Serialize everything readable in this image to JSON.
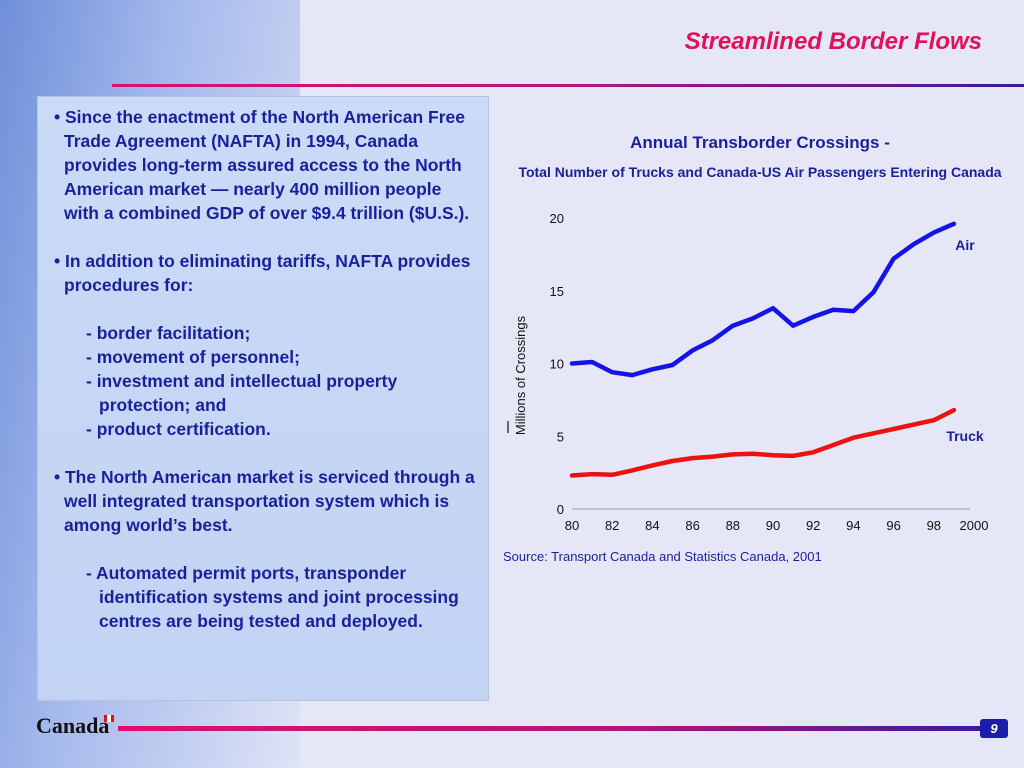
{
  "slide": {
    "title": "Streamlined Border Flows",
    "page_number": "9",
    "brand": "Canada"
  },
  "text_panel": {
    "bullet1": "• Since  the enactment of the North American Free Trade Agreement (NAFTA) in 1994, Canada provides long-term assured access to the North American market — nearly 400 million people with a combined GDP of over $9.4 trillion ($U.S.).",
    "bullet2": "• In addition to eliminating tariffs, NAFTA provides procedures for:",
    "sub_items": [
      "- border facilitation;",
      "- movement of personnel;",
      "- investment and intellectual property protection; and",
      "- product certification."
    ],
    "bullet3": "• The North American market is serviced through a well integrated transportation system which is among world’s best.",
    "sub_item3": "- Automated permit ports, transponder identification systems and joint processing centres are being tested and deployed."
  },
  "source": "Source: Transport Canada and Statistics Canada, 2001",
  "colors": {
    "air": "#1414e6",
    "truck": "#ee1111",
    "text": "#1b1f9c",
    "accent": "#e0105a"
  },
  "chart_data": {
    "type": "line",
    "title": "Annual Transborder Crossings -",
    "subtitle": "Total Number of Trucks and Canada-US Air Passengers Entering Canada",
    "ylabel": "Millions of Crossings",
    "xlabel": "",
    "ylim": [
      0,
      20
    ],
    "yticks": [
      "0",
      "5",
      "10",
      "15",
      "20"
    ],
    "xticks": [
      "80",
      "82",
      "84",
      "86",
      "88",
      "90",
      "92",
      "94",
      "96",
      "98",
      "2000"
    ],
    "xlim": [
      1980,
      2000
    ],
    "grid": false,
    "x": [
      1980,
      1981,
      1982,
      1983,
      1984,
      1985,
      1986,
      1987,
      1988,
      1989,
      1990,
      1991,
      1992,
      1993,
      1994,
      1995,
      1996,
      1997,
      1998,
      1999
    ],
    "series": [
      {
        "name": "Air",
        "color": "#1414e6",
        "values": [
          10.0,
          10.1,
          9.4,
          9.2,
          9.6,
          9.9,
          10.9,
          11.6,
          12.6,
          13.1,
          13.8,
          12.6,
          13.2,
          13.7,
          13.6,
          14.9,
          17.2,
          18.2,
          19.0,
          19.6
        ]
      },
      {
        "name": "Truck",
        "color": "#ee1111",
        "values": [
          2.3,
          2.4,
          2.35,
          2.65,
          3.0,
          3.3,
          3.5,
          3.6,
          3.75,
          3.8,
          3.7,
          3.65,
          3.9,
          4.4,
          4.9,
          5.2,
          5.5,
          5.8,
          6.1,
          6.8
        ]
      }
    ]
  }
}
